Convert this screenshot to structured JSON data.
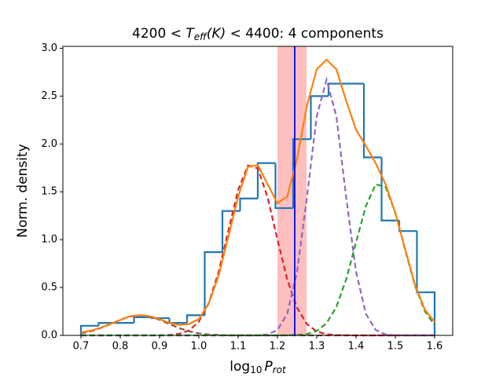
{
  "chart_data": {
    "type": "histogram",
    "title": [
      "4200 < ",
      "T",
      "eff",
      "(K)",
      " < 4400: 4 components"
    ],
    "xlabel": [
      "log",
      "10",
      "P",
      "rot"
    ],
    "ylabel": "Norm. density",
    "bins": [
      0.7,
      0.745,
      0.79,
      0.835,
      0.88,
      0.925,
      0.97,
      1.015,
      1.06,
      1.105,
      1.15,
      1.195,
      1.24,
      1.285,
      1.33,
      1.375,
      1.42,
      1.465,
      1.51,
      1.555,
      1.6
    ],
    "values": [
      0.1,
      0.13,
      0.13,
      0.19,
      0.18,
      0.13,
      0.21,
      0.87,
      1.3,
      1.43,
      1.8,
      1.33,
      2.05,
      2.5,
      2.63,
      2.63,
      1.86,
      1.2,
      1.09,
      0.45
    ],
    "color": "#1f77b4",
    "curves": {
      "x": [
        0.7,
        0.725,
        0.75,
        0.775,
        0.8,
        0.825,
        0.85,
        0.875,
        0.9,
        0.925,
        0.95,
        0.975,
        1.0,
        1.025,
        1.05,
        1.075,
        1.1,
        1.125,
        1.15,
        1.175,
        1.2,
        1.225,
        1.25,
        1.275,
        1.3,
        1.325,
        1.35,
        1.375,
        1.4,
        1.425,
        1.45,
        1.475,
        1.5,
        1.525,
        1.55,
        1.575,
        1.6
      ],
      "series": [
        {
          "color": "#ff7f0e",
          "style": "solid",
          "values": [
            0.03,
            0.05,
            0.08,
            0.12,
            0.16,
            0.2,
            0.21,
            0.2,
            0.17,
            0.13,
            0.11,
            0.12,
            0.17,
            0.33,
            0.62,
            1.03,
            1.45,
            1.76,
            1.78,
            1.58,
            1.38,
            1.45,
            1.85,
            2.4,
            2.78,
            2.88,
            2.78,
            2.45,
            2.15,
            1.98,
            1.8,
            1.58,
            1.28,
            0.9,
            0.53,
            0.27,
            0.14
          ]
        },
        {
          "color": "#8c564b",
          "style": "dashed",
          "values": [
            0.021,
            0.043,
            0.076,
            0.118,
            0.163,
            0.197,
            0.21,
            0.197,
            0.163,
            0.118,
            0.076,
            0.043,
            0.021,
            0.009,
            0.004,
            0.001,
            0,
            0,
            0,
            0,
            0,
            0,
            0,
            0,
            0,
            0,
            0,
            0,
            0,
            0,
            0,
            0,
            0,
            0,
            0,
            0,
            0
          ]
        },
        {
          "color": "#d62728",
          "style": "dashed",
          "values": [
            0,
            0,
            0,
            0,
            0,
            0,
            0,
            0,
            0.001,
            0.004,
            0.016,
            0.051,
            0.143,
            0.335,
            0.66,
            1.092,
            1.519,
            1.775,
            1.745,
            1.442,
            1.001,
            0.584,
            0.287,
            0.118,
            0.041,
            0.012,
            0.003,
            0.001,
            0,
            0,
            0,
            0,
            0,
            0,
            0,
            0,
            0
          ]
        },
        {
          "color": "#9467bd",
          "style": "dashed",
          "values": [
            0,
            0,
            0,
            0,
            0,
            0,
            0,
            0,
            0,
            0,
            0,
            0,
            0,
            0,
            0,
            0,
            0,
            0,
            0.001,
            0.01,
            0.056,
            0.226,
            0.666,
            1.441,
            2.289,
            2.67,
            2.289,
            1.441,
            0.666,
            0.226,
            0.056,
            0.01,
            0.001,
            0,
            0,
            0,
            0
          ]
        },
        {
          "color": "#2ca02c",
          "style": "dashed",
          "values": [
            0,
            0,
            0,
            0,
            0,
            0,
            0,
            0,
            0,
            0,
            0,
            0,
            0,
            0,
            0,
            0,
            0,
            0,
            0,
            0,
            0,
            0.001,
            0.004,
            0.014,
            0.046,
            0.127,
            0.298,
            0.587,
            0.971,
            1.35,
            1.578,
            1.55,
            1.282,
            0.89,
            0.52,
            0.254,
            0.105
          ]
        }
      ]
    },
    "vline": {
      "x": 1.244,
      "color": "#0000ff"
    },
    "span": {
      "xmin": 1.2,
      "xmax": 1.274,
      "color": "#ff0000",
      "alpha": 0.25
    },
    "xlim": [
      0.654,
      1.646
    ],
    "ylim": [
      0,
      3.02
    ],
    "xticks": [
      0.7,
      0.8,
      0.9,
      {
        "value": 1,
        "label": "1.0"
      },
      1.1,
      1.2,
      1.3,
      1.4,
      1.5,
      1.6
    ],
    "yticks": [
      {
        "value": 0,
        "label": "0.0"
      },
      0.5,
      {
        "value": 1,
        "label": "1.0"
      },
      1.5,
      {
        "value": 2,
        "label": "2.0"
      },
      2.5,
      {
        "value": 3,
        "label": "3.0"
      }
    ]
  }
}
